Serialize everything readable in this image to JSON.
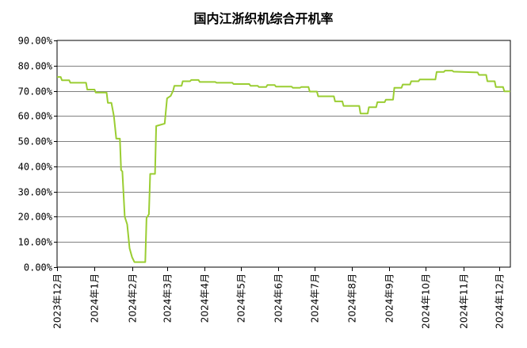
{
  "chart_data": {
    "type": "line",
    "title": "国内江浙织机综合开机率",
    "xlabel": "",
    "ylabel": "",
    "ylim": [
      0,
      90
    ],
    "y_ticks": [
      "0.00%",
      "10.00%",
      "20.00%",
      "30.00%",
      "40.00%",
      "50.00%",
      "60.00%",
      "70.00%",
      "80.00%",
      "90.00%"
    ],
    "y_tick_values": [
      0,
      10,
      20,
      30,
      40,
      50,
      60,
      70,
      80,
      90
    ],
    "x_ticks": [
      "2023年12月",
      "2024年1月",
      "2024年2月",
      "2024年3月",
      "2024年4月",
      "2024年5月",
      "2024年6月",
      "2024年7月",
      "2024年8月",
      "2024年9月",
      "2024年10月",
      "2024年11月",
      "2024年12月"
    ],
    "x_tick_values": [
      "2023-12-01",
      "2024-01-01",
      "2024-02-01",
      "2024-03-01",
      "2024-04-01",
      "2024-05-01",
      "2024-06-01",
      "2024-07-01",
      "2024-08-01",
      "2024-09-01",
      "2024-10-01",
      "2024-11-01",
      "2024-12-01"
    ],
    "x_range": [
      "2023-12-01",
      "2024-12-10"
    ],
    "grid": true,
    "line_color": "#9acd32",
    "series": [
      {
        "name": "",
        "points": [
          [
            "2023-12-01",
            75.5
          ],
          [
            "2023-12-04",
            75.5
          ],
          [
            "2023-12-05",
            74.2
          ],
          [
            "2023-12-11",
            74.2
          ],
          [
            "2023-12-12",
            73.2
          ],
          [
            "2023-12-25",
            73.2
          ],
          [
            "2023-12-26",
            70.5
          ],
          [
            "2024-01-01",
            70.5
          ],
          [
            "2024-01-02",
            69.3
          ],
          [
            "2024-01-11",
            69.3
          ],
          [
            "2024-01-12",
            65.2
          ],
          [
            "2024-01-15",
            65.2
          ],
          [
            "2024-01-17",
            60.0
          ],
          [
            "2024-01-19",
            51.0
          ],
          [
            "2024-01-22",
            51.0
          ],
          [
            "2024-01-23",
            38.5
          ],
          [
            "2024-01-24",
            38.0
          ],
          [
            "2024-01-26",
            20.0
          ],
          [
            "2024-01-28",
            17.0
          ],
          [
            "2024-01-30",
            7.5
          ],
          [
            "2024-02-01",
            4.0
          ],
          [
            "2024-02-03",
            2.0
          ],
          [
            "2024-02-12",
            2.0
          ],
          [
            "2024-02-13",
            19.5
          ],
          [
            "2024-02-15",
            21.0
          ],
          [
            "2024-02-16",
            37.0
          ],
          [
            "2024-02-20",
            37.0
          ],
          [
            "2024-02-21",
            56.0
          ],
          [
            "2024-02-28",
            57.0
          ],
          [
            "2024-03-01",
            67.0
          ],
          [
            "2024-03-04",
            68.0
          ],
          [
            "2024-03-06",
            70.0
          ],
          [
            "2024-03-07",
            72.0
          ],
          [
            "2024-03-13",
            72.0
          ],
          [
            "2024-03-14",
            73.8
          ],
          [
            "2024-03-20",
            73.8
          ],
          [
            "2024-03-21",
            74.3
          ],
          [
            "2024-03-27",
            74.3
          ],
          [
            "2024-03-28",
            73.5
          ],
          [
            "2024-04-10",
            73.5
          ],
          [
            "2024-04-11",
            73.2
          ],
          [
            "2024-04-24",
            73.2
          ],
          [
            "2024-04-25",
            72.7
          ],
          [
            "2024-05-08",
            72.7
          ],
          [
            "2024-05-09",
            72.0
          ],
          [
            "2024-05-15",
            72.0
          ],
          [
            "2024-05-16",
            71.5
          ],
          [
            "2024-05-22",
            71.5
          ],
          [
            "2024-05-23",
            72.3
          ],
          [
            "2024-05-29",
            72.3
          ],
          [
            "2024-05-30",
            71.7
          ],
          [
            "2024-06-12",
            71.7
          ],
          [
            "2024-06-13",
            71.2
          ],
          [
            "2024-06-19",
            71.2
          ],
          [
            "2024-06-20",
            71.5
          ],
          [
            "2024-06-26",
            71.5
          ],
          [
            "2024-06-27",
            69.7
          ],
          [
            "2024-07-03",
            69.7
          ],
          [
            "2024-07-04",
            67.8
          ],
          [
            "2024-07-17",
            67.8
          ],
          [
            "2024-07-18",
            65.8
          ],
          [
            "2024-07-24",
            65.8
          ],
          [
            "2024-07-25",
            64.0
          ],
          [
            "2024-08-07",
            64.0
          ],
          [
            "2024-08-08",
            61.0
          ],
          [
            "2024-08-14",
            61.0
          ],
          [
            "2024-08-15",
            63.5
          ],
          [
            "2024-08-21",
            63.5
          ],
          [
            "2024-08-22",
            65.5
          ],
          [
            "2024-08-28",
            65.5
          ],
          [
            "2024-08-29",
            66.5
          ],
          [
            "2024-09-04",
            66.5
          ],
          [
            "2024-09-05",
            71.2
          ],
          [
            "2024-09-11",
            71.2
          ],
          [
            "2024-09-12",
            72.5
          ],
          [
            "2024-09-18",
            72.5
          ],
          [
            "2024-09-19",
            73.8
          ],
          [
            "2024-09-25",
            73.8
          ],
          [
            "2024-09-26",
            74.5
          ],
          [
            "2024-10-09",
            74.5
          ],
          [
            "2024-10-10",
            77.5
          ],
          [
            "2024-10-16",
            77.5
          ],
          [
            "2024-10-17",
            78.0
          ],
          [
            "2024-10-23",
            78.0
          ],
          [
            "2024-10-24",
            77.6
          ],
          [
            "2024-11-13",
            77.3
          ],
          [
            "2024-11-14",
            76.3
          ],
          [
            "2024-11-20",
            76.3
          ],
          [
            "2024-11-21",
            73.8
          ],
          [
            "2024-11-27",
            73.8
          ],
          [
            "2024-11-28",
            71.5
          ],
          [
            "2024-12-04",
            71.5
          ],
          [
            "2024-12-05",
            69.8
          ],
          [
            "2024-12-10",
            69.8
          ]
        ]
      }
    ]
  }
}
